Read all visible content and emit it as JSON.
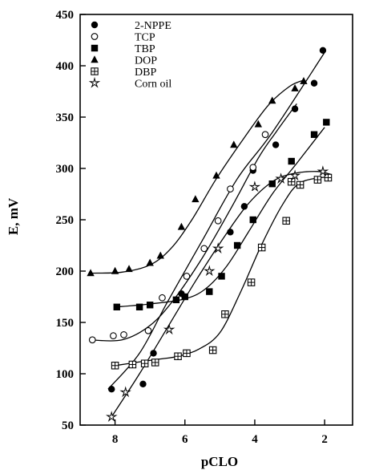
{
  "chart_data": {
    "type": "scatter",
    "title": "",
    "xlabel": "pCLO",
    "ylabel": "E, mV",
    "xlim": [
      9.0,
      1.2
    ],
    "ylim": [
      50,
      450
    ],
    "x_ticks": [
      8,
      6,
      4,
      2
    ],
    "y_ticks": [
      50,
      100,
      150,
      200,
      250,
      300,
      350,
      400,
      450
    ],
    "legend_position": "top-left",
    "grid": false,
    "series": [
      {
        "name": "2-NPPE",
        "marker": "filled-circle",
        "points": [
          [
            8.1,
            85
          ],
          [
            7.2,
            90
          ],
          [
            6.9,
            120
          ],
          [
            6.1,
            178
          ],
          [
            4.7,
            238
          ],
          [
            4.3,
            263
          ],
          [
            4.05,
            298
          ],
          [
            3.4,
            323
          ],
          [
            2.85,
            358
          ],
          [
            2.3,
            383
          ],
          [
            2.05,
            415
          ]
        ],
        "curve": [
          [
            8.2,
            85
          ],
          [
            7.3,
            120
          ],
          [
            6.5,
            170
          ],
          [
            5.5,
            230
          ],
          [
            4.5,
            290
          ],
          [
            3.5,
            335
          ],
          [
            2.0,
            413
          ]
        ]
      },
      {
        "name": "TCP",
        "marker": "open-circle",
        "points": [
          [
            8.65,
            133
          ],
          [
            8.05,
            137
          ],
          [
            7.75,
            138
          ],
          [
            7.05,
            142
          ],
          [
            6.65,
            174
          ],
          [
            5.95,
            195
          ],
          [
            5.45,
            222
          ],
          [
            5.05,
            249
          ],
          [
            4.7,
            280
          ],
          [
            4.05,
            301
          ],
          [
            3.7,
            333
          ]
        ],
        "curve": [
          [
            8.7,
            133
          ],
          [
            7.8,
            133
          ],
          [
            7.0,
            147
          ],
          [
            6.3,
            173
          ],
          [
            5.5,
            213
          ],
          [
            4.7,
            260
          ],
          [
            3.9,
            310
          ],
          [
            3.4,
            335
          ],
          [
            2.8,
            363
          ]
        ]
      },
      {
        "name": "TBP",
        "marker": "filled-square",
        "points": [
          [
            7.95,
            165
          ],
          [
            7.3,
            165
          ],
          [
            7.0,
            167
          ],
          [
            6.25,
            172
          ],
          [
            6.0,
            175
          ],
          [
            5.3,
            180
          ],
          [
            4.95,
            195
          ],
          [
            4.5,
            225
          ],
          [
            4.05,
            250
          ],
          [
            3.5,
            285
          ],
          [
            2.95,
            307
          ],
          [
            2.3,
            333
          ],
          [
            1.95,
            345
          ]
        ],
        "curve": [
          [
            8.0,
            165
          ],
          [
            7.0,
            168
          ],
          [
            6.0,
            173
          ],
          [
            5.4,
            183
          ],
          [
            4.8,
            205
          ],
          [
            4.2,
            237
          ],
          [
            3.5,
            275
          ],
          [
            2.8,
            305
          ],
          [
            2.0,
            340
          ]
        ]
      },
      {
        "name": "DOP",
        "marker": "filled-triangle",
        "points": [
          [
            8.7,
            198
          ],
          [
            8.0,
            200
          ],
          [
            7.6,
            202
          ],
          [
            7.0,
            208
          ],
          [
            6.7,
            215
          ],
          [
            6.1,
            243
          ],
          [
            5.7,
            270
          ],
          [
            5.1,
            293
          ],
          [
            4.6,
            323
          ],
          [
            3.9,
            343
          ],
          [
            3.5,
            366
          ],
          [
            2.85,
            378
          ],
          [
            2.6,
            385
          ]
        ],
        "curve": [
          [
            8.7,
            198
          ],
          [
            7.8,
            199
          ],
          [
            7.0,
            206
          ],
          [
            6.4,
            222
          ],
          [
            5.8,
            250
          ],
          [
            5.1,
            290
          ],
          [
            4.3,
            330
          ],
          [
            3.6,
            362
          ],
          [
            3.0,
            380
          ],
          [
            2.6,
            386
          ]
        ]
      },
      {
        "name": "DBP",
        "marker": "square-plus",
        "points": [
          [
            8.0,
            108
          ],
          [
            7.5,
            109
          ],
          [
            7.15,
            110
          ],
          [
            6.85,
            111
          ],
          [
            6.2,
            117
          ],
          [
            5.95,
            120
          ],
          [
            5.2,
            123
          ],
          [
            4.85,
            158
          ],
          [
            4.1,
            189
          ],
          [
            3.8,
            223
          ],
          [
            3.1,
            249
          ],
          [
            2.95,
            287
          ],
          [
            2.7,
            284
          ],
          [
            2.2,
            289
          ],
          [
            1.9,
            291
          ]
        ],
        "curve": [
          [
            8.0,
            108
          ],
          [
            7.4,
            111
          ],
          [
            6.8,
            114
          ],
          [
            6.2,
            117
          ],
          [
            5.6,
            124
          ],
          [
            5.0,
            140
          ],
          [
            4.4,
            180
          ],
          [
            3.8,
            226
          ],
          [
            3.2,
            265
          ],
          [
            2.7,
            286
          ],
          [
            1.9,
            292
          ]
        ]
      },
      {
        "name": "Corn oil",
        "marker": "open-star",
        "points": [
          [
            8.1,
            58
          ],
          [
            7.7,
            82
          ],
          [
            6.45,
            143
          ],
          [
            5.3,
            200
          ],
          [
            5.05,
            222
          ],
          [
            4.0,
            282
          ],
          [
            3.25,
            290
          ],
          [
            2.85,
            293
          ],
          [
            2.05,
            297
          ]
        ],
        "curve": [
          [
            8.1,
            58
          ],
          [
            7.3,
            100
          ],
          [
            6.5,
            145
          ],
          [
            5.7,
            190
          ],
          [
            4.9,
            232
          ],
          [
            4.2,
            265
          ],
          [
            3.5,
            287
          ],
          [
            2.9,
            295
          ],
          [
            2.2,
            297
          ],
          [
            1.8,
            294
          ]
        ]
      }
    ]
  }
}
